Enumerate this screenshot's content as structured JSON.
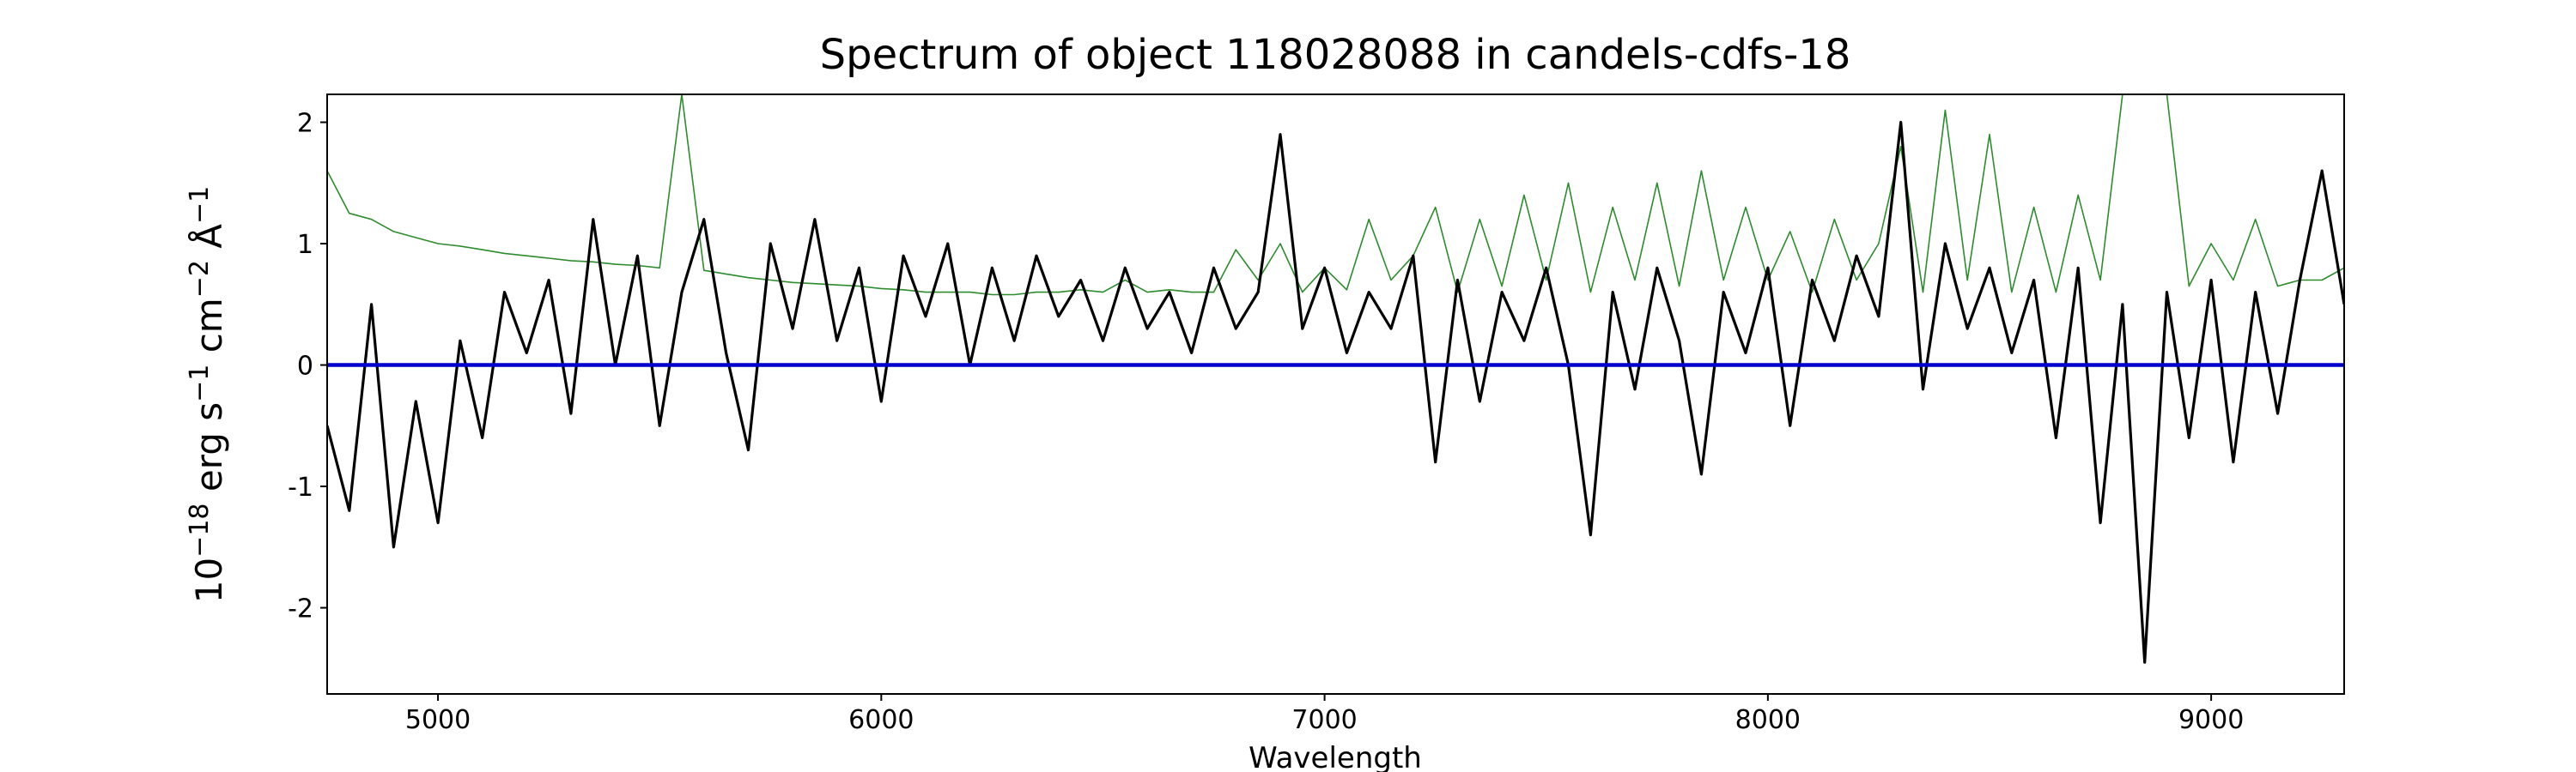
{
  "chart_data": {
    "type": "line",
    "title": "Spectrum of object 118028088 in candels-cdfs-18",
    "xlabel": "Wavelength",
    "ylabel_parts": [
      "10",
      "−18",
      " erg s",
      "−1",
      " cm",
      "−2",
      " Å",
      "−1"
    ],
    "x": [
      4750,
      4800,
      4850,
      4900,
      4950,
      5000,
      5050,
      5100,
      5150,
      5200,
      5250,
      5300,
      5350,
      5400,
      5450,
      5500,
      5550,
      5600,
      5650,
      5700,
      5750,
      5800,
      5850,
      5900,
      5950,
      6000,
      6050,
      6100,
      6150,
      6200,
      6250,
      6300,
      6350,
      6400,
      6450,
      6500,
      6550,
      6600,
      6650,
      6700,
      6750,
      6800,
      6850,
      6900,
      6950,
      7000,
      7050,
      7100,
      7150,
      7200,
      7250,
      7300,
      7350,
      7400,
      7450,
      7500,
      7550,
      7600,
      7650,
      7700,
      7750,
      7800,
      7850,
      7900,
      7950,
      8000,
      8050,
      8100,
      8150,
      8200,
      8250,
      8300,
      8350,
      8400,
      8450,
      8500,
      8550,
      8600,
      8650,
      8700,
      8750,
      8800,
      8850,
      8900,
      8950,
      9000,
      9050,
      9100,
      9150,
      9200,
      9250,
      9300
    ],
    "series": [
      {
        "color": "#2e8b2e",
        "width": 1.6,
        "values": [
          1.6,
          1.25,
          1.2,
          1.1,
          1.05,
          1.0,
          0.98,
          0.95,
          0.92,
          0.9,
          0.88,
          0.86,
          0.85,
          0.83,
          0.82,
          0.8,
          2.23,
          0.78,
          0.75,
          0.72,
          0.7,
          0.68,
          0.67,
          0.66,
          0.65,
          0.63,
          0.62,
          0.6,
          0.6,
          0.6,
          0.58,
          0.58,
          0.6,
          0.6,
          0.62,
          0.6,
          0.7,
          0.6,
          0.62,
          0.6,
          0.6,
          0.95,
          0.7,
          1.0,
          0.6,
          0.8,
          0.62,
          1.2,
          0.7,
          0.9,
          1.3,
          0.6,
          1.2,
          0.65,
          1.4,
          0.7,
          1.5,
          0.6,
          1.3,
          0.7,
          1.5,
          0.65,
          1.6,
          0.7,
          1.3,
          0.7,
          1.1,
          0.6,
          1.2,
          0.7,
          1.0,
          1.8,
          0.6,
          2.1,
          0.7,
          1.9,
          0.6,
          1.3,
          0.6,
          1.4,
          0.7,
          2.23,
          2.23,
          2.23,
          0.65,
          1.0,
          0.7,
          1.2,
          0.65,
          0.7,
          0.7,
          0.8
        ]
      },
      {
        "color": "#000000",
        "width": 3.2,
        "values": [
          -0.5,
          -1.2,
          0.5,
          -1.5,
          -0.3,
          -1.3,
          0.2,
          -0.6,
          0.6,
          0.1,
          0.7,
          -0.4,
          1.2,
          0.0,
          0.9,
          -0.5,
          0.6,
          1.2,
          0.1,
          -0.7,
          1.0,
          0.3,
          1.2,
          0.2,
          0.8,
          -0.3,
          0.9,
          0.4,
          1.0,
          0.0,
          0.8,
          0.2,
          0.9,
          0.4,
          0.7,
          0.2,
          0.8,
          0.3,
          0.6,
          0.1,
          0.8,
          0.3,
          0.6,
          1.9,
          0.3,
          0.8,
          0.1,
          0.6,
          0.3,
          0.9,
          -0.8,
          0.7,
          -0.3,
          0.6,
          0.2,
          0.8,
          0.0,
          -1.4,
          0.6,
          -0.2,
          0.8,
          0.2,
          -0.9,
          0.6,
          0.1,
          0.8,
          -0.5,
          0.7,
          0.2,
          0.9,
          0.4,
          2.0,
          -0.2,
          1.0,
          0.3,
          0.8,
          0.1,
          0.7,
          -0.6,
          0.8,
          -1.3,
          0.5,
          -2.45,
          0.6,
          -0.6,
          0.7,
          -0.8,
          0.6,
          -0.4,
          0.7,
          1.6,
          0.5
        ]
      },
      {
        "color": "#0000cc",
        "width": 4.5,
        "x": [
          4750,
          9300
        ],
        "values": [
          0,
          0
        ]
      }
    ],
    "xlim": [
      4750,
      9300
    ],
    "ylim": [
      -2.71,
      2.23
    ],
    "xticks": [
      5000,
      6000,
      7000,
      8000,
      9000
    ],
    "yticks": [
      -2,
      -1,
      0,
      1,
      2
    ]
  }
}
